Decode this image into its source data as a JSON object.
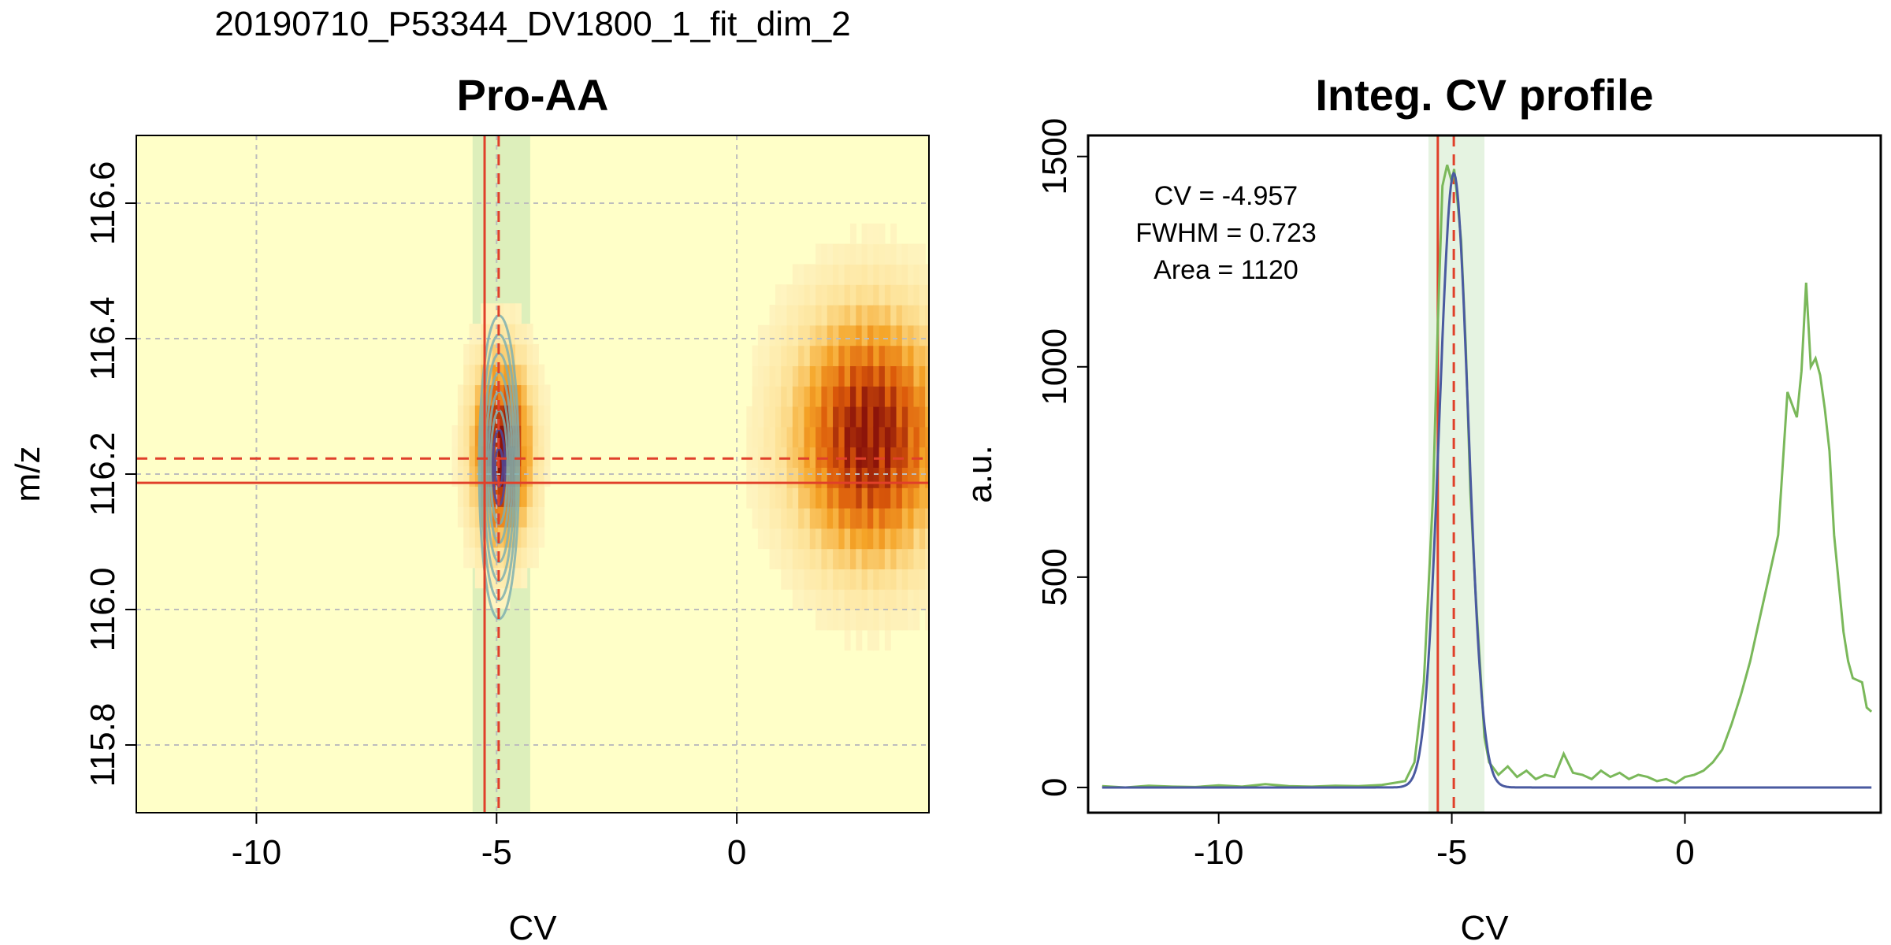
{
  "suptitle": "20190710_P53344_DV1800_1_fit_dim_2",
  "colors": {
    "background": "#ffffc8",
    "grid": "#bdbdbd",
    "selection_band": "#b4dcaa",
    "marker": "#e0402a",
    "contour": "#7fb0b0",
    "measured": "#7ab85a",
    "fit": "#4a5aa0"
  },
  "chart_data": [
    {
      "type": "heatmap",
      "title": "Pro-AA",
      "xlabel": "CV",
      "ylabel": "m/z",
      "xlim": [
        -12.5,
        4
      ],
      "ylim": [
        115.7,
        116.7
      ],
      "xticks": [
        -10,
        -5,
        0
      ],
      "yticks": [
        115.8,
        116.0,
        116.2,
        116.4,
        116.6
      ],
      "xtick_labels": [
        "-10",
        "-5",
        "0"
      ],
      "ytick_labels": [
        "115.8",
        "116.0",
        "116.2",
        "116.4",
        "116.6"
      ],
      "grid": true,
      "colormap": "heat (yellow background, orange to dark red for high intensity)",
      "selection_band_cv": [
        -5.5,
        -4.3
      ],
      "marker_lines": {
        "solid_cv": -5.25,
        "dashed_cv": -4.957,
        "solid_mz": 116.187,
        "dashed_mz": 116.223
      },
      "intensity_blobs": [
        {
          "cv_center": -4.95,
          "mz_center": 116.22,
          "cv_width": 1.0,
          "mz_height": 0.22,
          "peak": 1.0
        },
        {
          "cv_center": 2.7,
          "mz_center": 116.24,
          "cv_width": 2.6,
          "mz_height": 0.3,
          "peak": 0.95
        }
      ],
      "contours": [
        {
          "cv_center": -4.95,
          "mz_center": 116.21,
          "levels": 8
        }
      ]
    },
    {
      "type": "line",
      "title": "Integ. CV profile",
      "xlabel": "CV",
      "ylabel": "a.u.",
      "xlim": [
        -12.8,
        4.2
      ],
      "ylim": [
        -60,
        1550
      ],
      "xticks": [
        -10,
        -5,
        0
      ],
      "yticks": [
        0,
        500,
        1000,
        1500
      ],
      "xtick_labels": [
        "-10",
        "-5",
        "0"
      ],
      "ytick_labels": [
        "0",
        "500",
        "1000",
        "1500"
      ],
      "grid": false,
      "selection_band_cv": [
        -5.5,
        -4.3
      ],
      "marker_lines": {
        "solid_cv": -5.3,
        "dashed_cv": -4.957
      },
      "annotations": [
        "CV = -4.957",
        "FWHM = 0.723",
        "Area = 1120"
      ],
      "series": [
        {
          "style": "measured",
          "x": [
            -12.5,
            -12.0,
            -11.5,
            -11.0,
            -10.5,
            -10.0,
            -9.5,
            -9.0,
            -8.5,
            -8.0,
            -7.5,
            -7.0,
            -6.5,
            -6.0,
            -5.8,
            -5.6,
            -5.4,
            -5.3,
            -5.2,
            -5.1,
            -5.0,
            -4.95,
            -4.9,
            -4.8,
            -4.7,
            -4.6,
            -4.5,
            -4.4,
            -4.3,
            -4.2,
            -4.0,
            -3.8,
            -3.6,
            -3.4,
            -3.2,
            -3.0,
            -2.8,
            -2.6,
            -2.4,
            -2.2,
            -2.0,
            -1.8,
            -1.6,
            -1.4,
            -1.2,
            -1.0,
            -0.8,
            -0.6,
            -0.4,
            -0.2,
            0.0,
            0.2,
            0.4,
            0.6,
            0.8,
            1.0,
            1.2,
            1.4,
            1.6,
            1.8,
            2.0,
            2.2,
            2.4,
            2.5,
            2.6,
            2.7,
            2.8,
            2.9,
            3.0,
            3.1,
            3.2,
            3.4,
            3.5,
            3.6,
            3.8,
            3.9,
            4.0
          ],
          "y": [
            3,
            0,
            4,
            2,
            1,
            5,
            2,
            8,
            3,
            2,
            4,
            3,
            6,
            15,
            60,
            250,
            700,
            1100,
            1430,
            1480,
            1440,
            1470,
            1420,
            1300,
            1050,
            700,
            480,
            300,
            120,
            60,
            30,
            50,
            25,
            40,
            20,
            30,
            25,
            80,
            35,
            30,
            20,
            40,
            25,
            35,
            20,
            30,
            25,
            15,
            20,
            10,
            25,
            30,
            40,
            60,
            90,
            150,
            220,
            300,
            400,
            500,
            600,
            940,
            880,
            990,
            1200,
            1000,
            1020,
            980,
            900,
            800,
            600,
            370,
            300,
            260,
            250,
            190,
            180
          ]
        },
        {
          "style": "fit",
          "gaussian": {
            "center": -4.957,
            "fwhm": 0.723,
            "height": 1460
          },
          "x_range": [
            -12.5,
            4.0
          ]
        }
      ]
    }
  ]
}
